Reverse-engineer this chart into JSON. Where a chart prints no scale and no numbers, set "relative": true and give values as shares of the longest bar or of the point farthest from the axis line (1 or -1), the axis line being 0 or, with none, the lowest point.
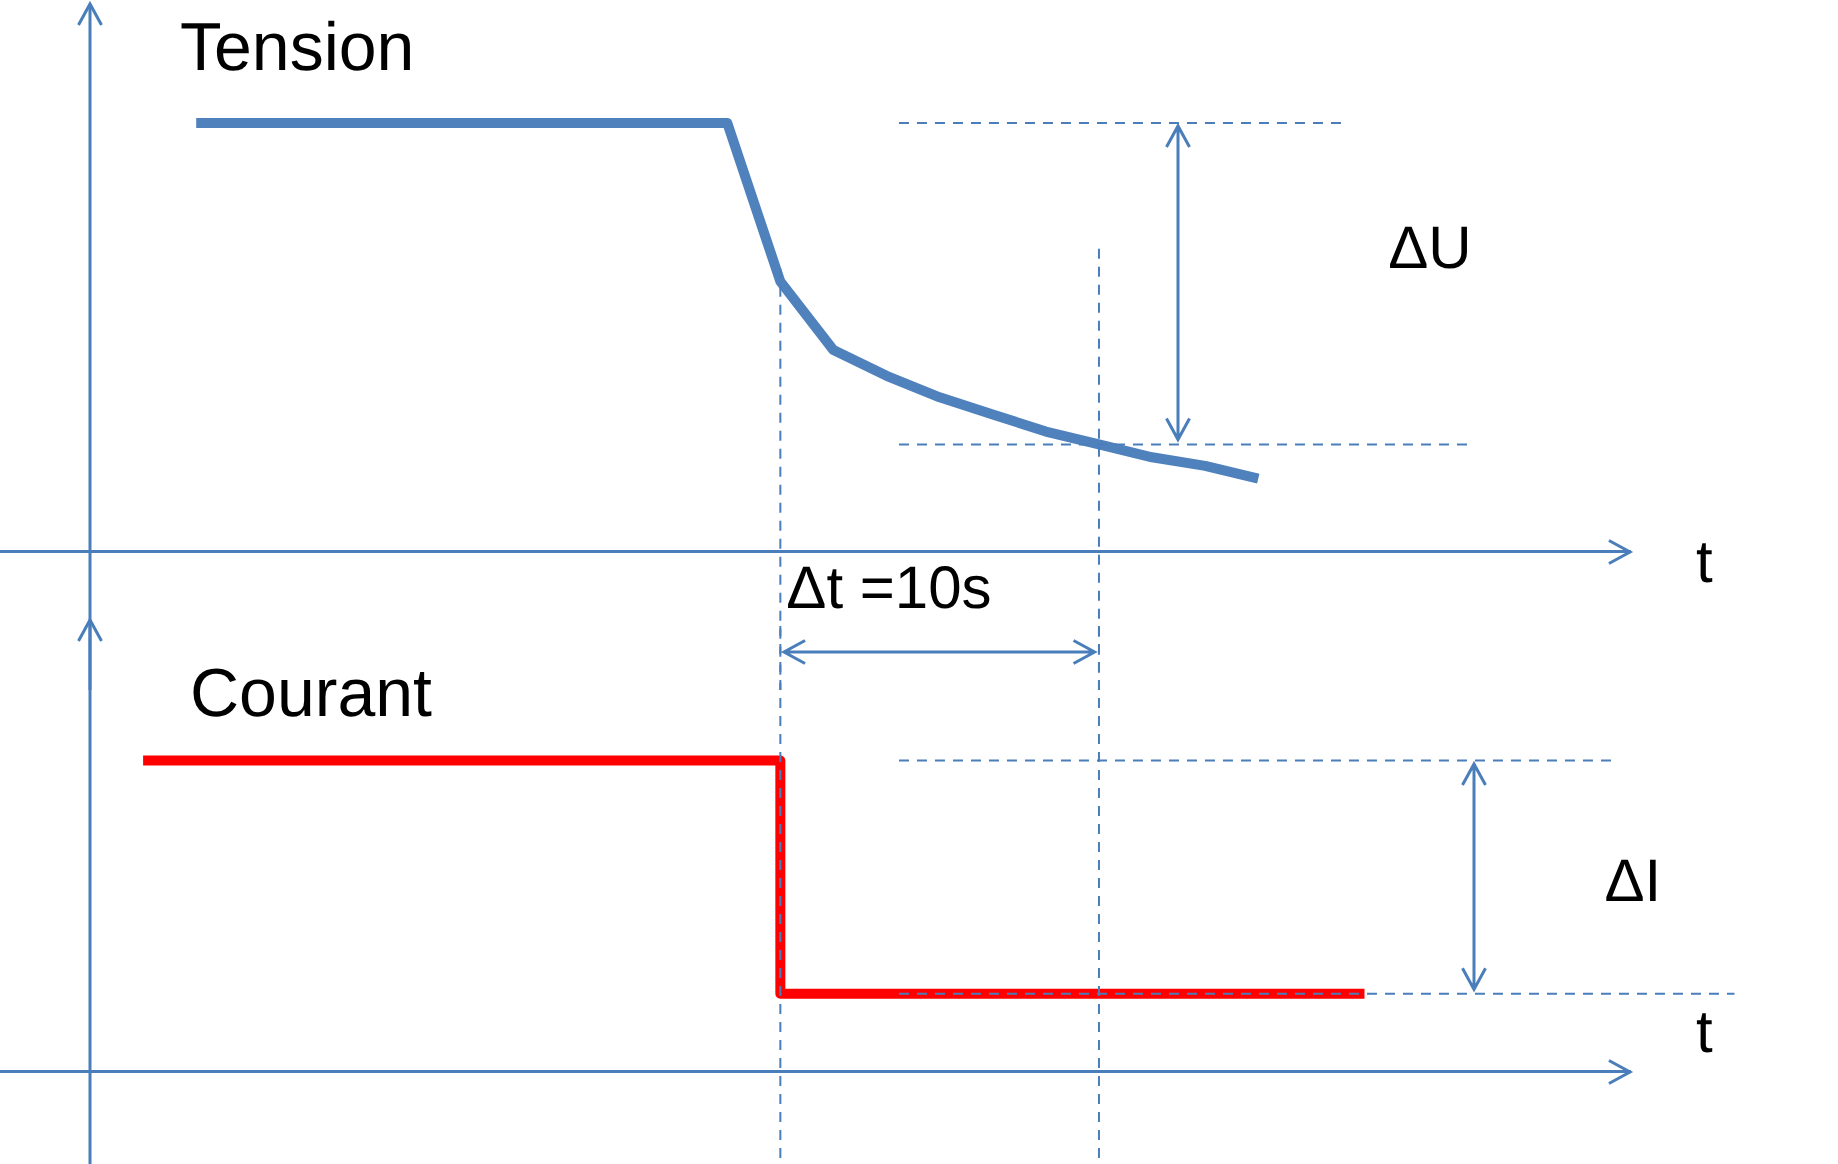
{
  "chart_data": [
    {
      "type": "line",
      "title": "Tension",
      "xlabel": "t",
      "relative": true,
      "legend": false,
      "marker": "none",
      "line_style": "solid",
      "categories": [
        null,
        null,
        null,
        null,
        null,
        null,
        null,
        null,
        null,
        null,
        null,
        null,
        null,
        null,
        null,
        null,
        null,
        null,
        null,
        null,
        null,
        null,
        null,
        null,
        null,
        null,
        null,
        null,
        null,
        null
      ],
      "series": [
        {
          "color": "#4f81bd",
          "values": [
            null,
            null,
            1,
            1,
            1,
            1,
            1,
            1,
            1,
            1,
            1,
            1,
            1,
            0.63,
            0.47,
            0.41,
            0.36,
            0.32,
            0.28,
            0.25,
            0.22,
            0.2,
            0.17,
            null,
            null,
            null,
            null,
            null,
            null,
            null
          ]
        }
      ],
      "ref_lines": [
        {
          "axis": "y",
          "value": 1
        },
        {
          "axis": "y",
          "value": 0.25
        }
      ],
      "annotations": [
        "ΔU",
        "Δt =10s"
      ]
    },
    {
      "type": "step",
      "title": "Courant",
      "xlabel": "t",
      "relative": true,
      "legend": false,
      "marker": "none",
      "line_style": "solid",
      "categories": [
        null,
        null,
        null,
        null,
        null,
        null,
        null,
        null,
        null,
        null,
        null,
        null,
        null,
        null,
        null,
        null,
        null,
        null,
        null,
        null,
        null,
        null,
        null,
        null,
        null,
        null,
        null,
        null,
        null,
        null
      ],
      "series": [
        {
          "color": "#ff0000",
          "values": [
            null,
            1,
            1,
            1,
            1,
            1,
            1,
            1,
            1,
            1,
            1,
            1,
            1,
            0.25,
            0.25,
            0.25,
            0.25,
            0.25,
            0.25,
            0.25,
            0.25,
            0.25,
            0.25,
            0.25,
            0.25,
            null,
            null,
            null,
            null,
            null
          ]
        }
      ],
      "ref_lines": [
        {
          "axis": "y",
          "value": 1
        },
        {
          "axis": "y",
          "value": 0.25
        }
      ],
      "annotations": [
        "ΔI"
      ]
    }
  ]
}
